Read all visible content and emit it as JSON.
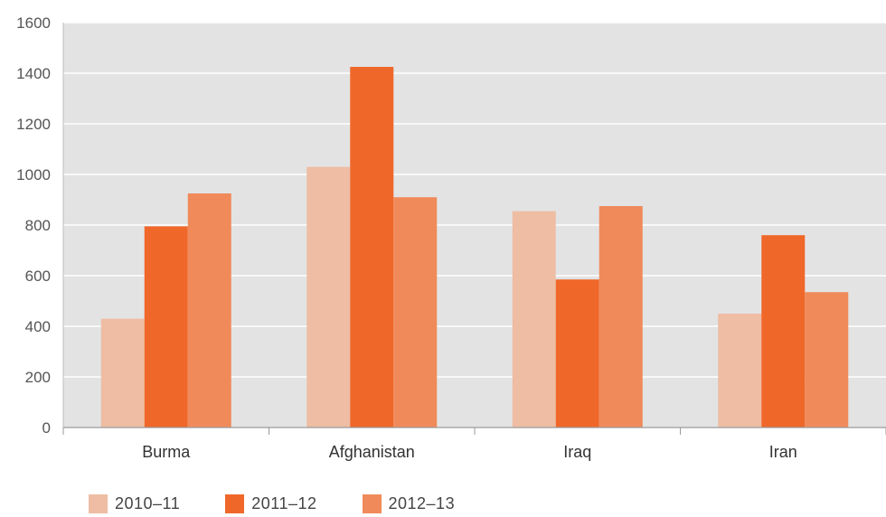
{
  "chart_data": {
    "type": "bar",
    "categories": [
      "Burma",
      "Afghanistan",
      "Iraq",
      "Iran"
    ],
    "series": [
      {
        "name": "2010–11",
        "color": "#eebda3",
        "values": [
          430,
          1030,
          855,
          450
        ]
      },
      {
        "name": "2011–12",
        "color": "#f0672a",
        "values": [
          795,
          1425,
          585,
          760
        ]
      },
      {
        "name": "2012–13",
        "color": "#f08a5b",
        "values": [
          925,
          910,
          875,
          535
        ]
      }
    ],
    "yticks": [
      "0",
      "200",
      "400",
      "600",
      "800",
      "1000",
      "1200",
      "1400",
      "1600"
    ],
    "ylim": [
      0,
      1600
    ],
    "grid": true,
    "legend_position": "bottom-left",
    "plot_background": "#e3e3e3"
  }
}
